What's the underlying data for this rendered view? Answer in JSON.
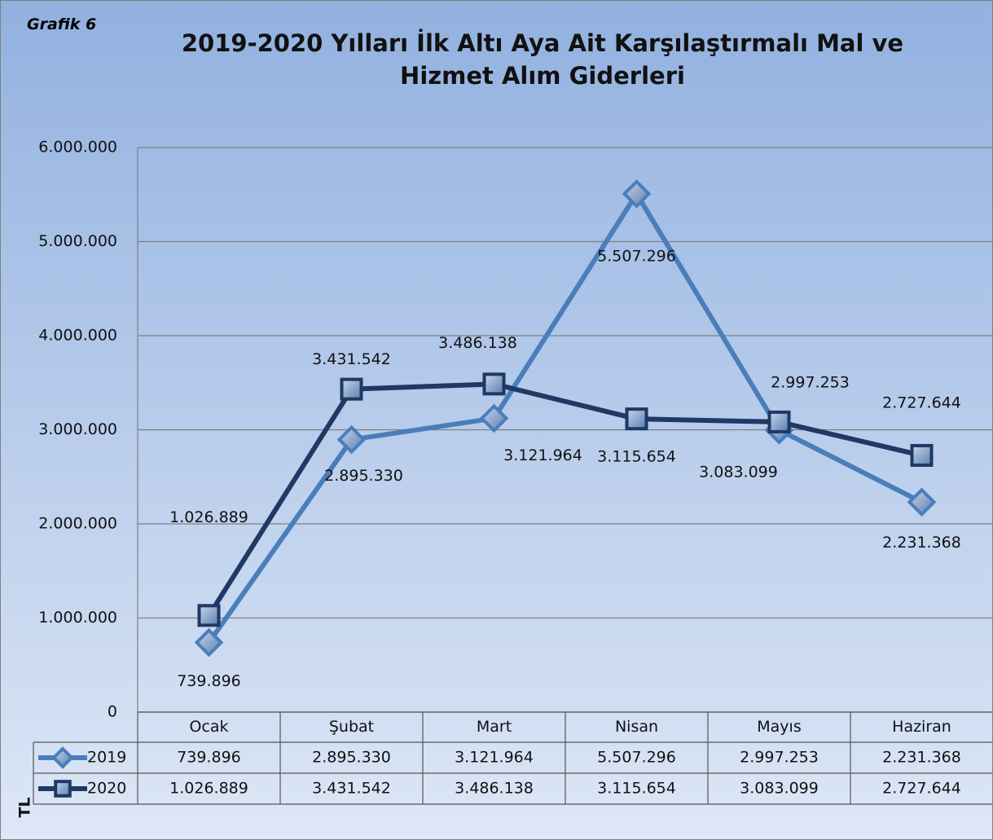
{
  "chart_data": {
    "type": "line",
    "label": "Grafik 6",
    "title": "2019-2020  Yılları İlk Altı Aya Ait Karşılaştırmalı Mal ve Hizmet Alım Giderleri",
    "ylabel": "TL",
    "categories": [
      "Ocak",
      "Şubat",
      "Mart",
      "Nisan",
      "Mayıs",
      "Haziran"
    ],
    "series": [
      {
        "name": "2019",
        "color": "#4a7ebb",
        "marker": "diamond",
        "values": [
          739896,
          2895330,
          3121964,
          5507296,
          2997253,
          2231368
        ],
        "value_labels": [
          "739.896",
          "2.895.330",
          "3.121.964",
          "5.507.296",
          "2.997.253",
          "2.231.368"
        ]
      },
      {
        "name": "2020",
        "color": "#1f3864",
        "marker": "square",
        "values": [
          1026889,
          3431542,
          3486138,
          3115654,
          3083099,
          2727644
        ],
        "value_labels": [
          "1.026.889",
          "3.431.542",
          "3.486.138",
          "3.115.654",
          "3.083.099",
          "2.727.644"
        ]
      }
    ],
    "ylim": [
      0,
      6000000
    ],
    "yticks": [
      0,
      {
        "value": 1000000,
        "label": "1.000.000"
      },
      {
        "value": 2000000,
        "label": "2.000.000"
      },
      {
        "value": 3000000,
        "label": "3.000.000"
      },
      {
        "value": 4000000,
        "label": "4.000.000"
      },
      {
        "value": 5000000,
        "label": "5.000.000"
      },
      {
        "value": 6000000,
        "label": "6.000.000"
      }
    ],
    "grid": true,
    "data_table": true
  }
}
